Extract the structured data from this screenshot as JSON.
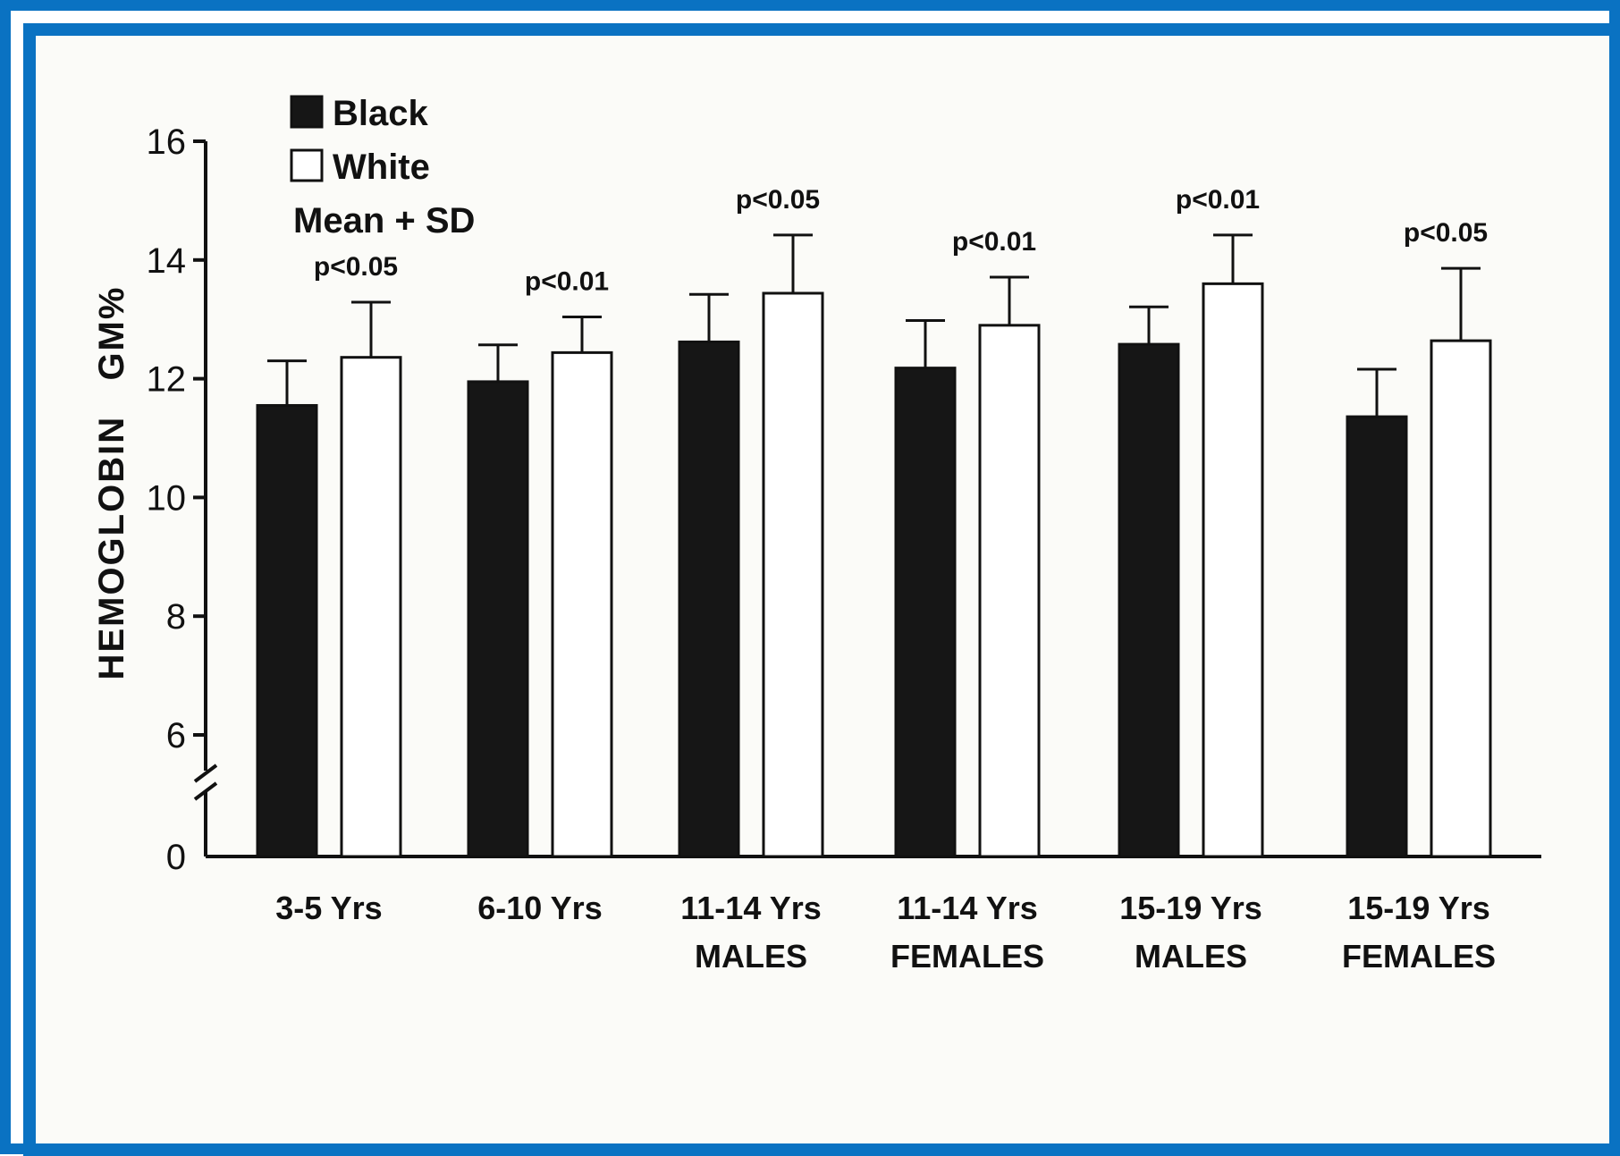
{
  "chart_data": {
    "type": "bar",
    "title": "",
    "xlabel": "",
    "ylabel": "HEMOGLOBIN   GM%",
    "ylim": [
      0,
      16
    ],
    "axis_break": "between 0 and 6",
    "yticks": [
      "0",
      "6",
      "8",
      "10",
      "12",
      "14",
      "16"
    ],
    "categories": [
      {
        "line1": "3-5 Yrs",
        "line2": ""
      },
      {
        "line1": "6-10 Yrs",
        "line2": ""
      },
      {
        "line1": "11-14 Yrs",
        "line2": "MALES"
      },
      {
        "line1": "11-14 Yrs",
        "line2": "FEMALES"
      },
      {
        "line1": "15-19 Yrs",
        "line2": "MALES"
      },
      {
        "line1": "15-19 Yrs",
        "line2": "FEMALES"
      }
    ],
    "series": [
      {
        "name": "Black",
        "color": "#161616",
        "values": [
          11.55,
          11.95,
          12.62,
          12.18,
          12.58,
          11.36
        ],
        "sd": [
          0.75,
          0.62,
          0.8,
          0.8,
          0.63,
          0.8
        ]
      },
      {
        "name": "White",
        "color": "#ffffff",
        "values": [
          12.36,
          12.44,
          13.44,
          12.9,
          13.6,
          12.64
        ],
        "sd": [
          0.93,
          0.6,
          0.98,
          0.81,
          0.82,
          1.22
        ]
      }
    ],
    "p_values": [
      "p<0.05",
      "p<0.01",
      "p<0.05",
      "p<0.01",
      "p<0.01",
      "p<0.05"
    ],
    "legend": {
      "items": [
        "Black",
        "White"
      ],
      "note": "Mean + SD",
      "position": "top-left"
    }
  },
  "colors": {
    "frame": "#0a72c2",
    "background": "#fbfbf8",
    "ink": "#111111"
  }
}
